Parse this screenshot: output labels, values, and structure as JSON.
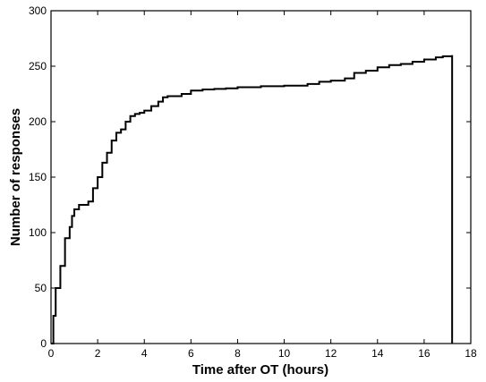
{
  "chart_data": {
    "type": "line",
    "title": "",
    "xlabel": "Time after OT (hours)",
    "ylabel": "Number of responses",
    "xlim": [
      0,
      18
    ],
    "ylim": [
      0,
      300
    ],
    "xticks": [
      0,
      2,
      4,
      6,
      8,
      10,
      12,
      14,
      16,
      18
    ],
    "yticks": [
      0,
      50,
      100,
      150,
      200,
      250,
      300
    ],
    "grid": false,
    "legend": "none",
    "series_style": {
      "color": "#000000",
      "style": "step"
    },
    "series": [
      {
        "x": [
          0,
          0.1,
          0.2,
          0.4,
          0.6,
          0.8,
          0.9,
          1.0,
          1.2,
          1.6,
          1.8,
          2.0,
          2.2,
          2.4,
          2.6,
          2.8,
          3.0,
          3.2,
          3.4,
          3.6,
          3.8,
          4.0,
          4.3,
          4.6,
          4.8,
          5.0,
          5.6,
          6.0,
          6.5,
          7.0,
          7.5,
          8.0,
          9.0,
          10.0,
          11.0,
          11.5,
          12.0,
          12.6,
          13.0,
          13.5,
          14.0,
          14.5,
          15.0,
          15.5,
          16.0,
          16.5,
          16.8,
          17.2
        ],
        "y": [
          0,
          25,
          50,
          70,
          95,
          105,
          115,
          121,
          125,
          128,
          140,
          150,
          163,
          172,
          183,
          190,
          193,
          200,
          205,
          207,
          208,
          210,
          214,
          218,
          222,
          223,
          225,
          228,
          229,
          229.5,
          230,
          231,
          232,
          232.5,
          234,
          236,
          237,
          239,
          244,
          246,
          249,
          251,
          252,
          254,
          256,
          258,
          259,
          260
        ]
      }
    ]
  }
}
